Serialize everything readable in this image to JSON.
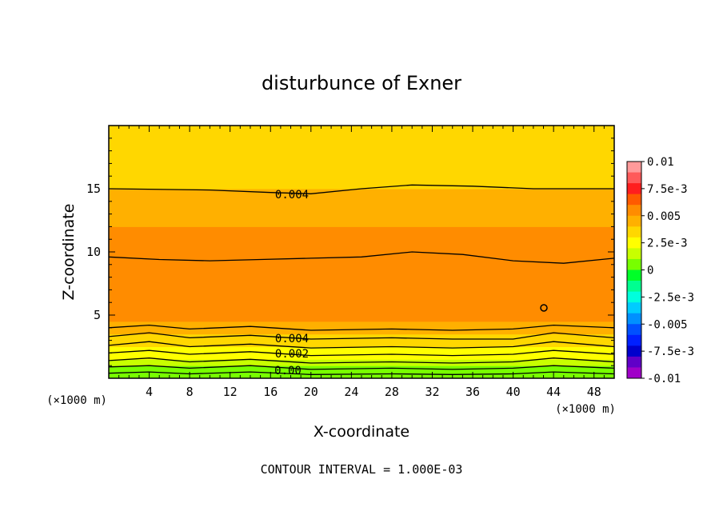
{
  "chart_data": {
    "type": "heatmap",
    "title": "disturbunce of Exner",
    "xlabel": "X-coordinate",
    "ylabel": "Z-coordinate",
    "x_unit_left": "(×1000 m)",
    "x_unit_right": "(×1000 m)",
    "xlim": [
      0,
      50
    ],
    "ylim": [
      0,
      20
    ],
    "x_ticks": [
      4,
      8,
      12,
      16,
      20,
      24,
      28,
      32,
      36,
      40,
      44,
      48
    ],
    "y_ticks": [
      5,
      10,
      15
    ],
    "footer": "CONTOUR INTERVAL = 1.000E-03",
    "colorbar": {
      "labels": [
        "0.01",
        "7.5e-3",
        "0.005",
        "2.5e-3",
        "0",
        "-2.5e-3",
        "-0.005",
        "-7.5e-3",
        "-0.01"
      ],
      "colors": [
        "#ff9a9a",
        "#ff5a5a",
        "#ff1e1e",
        "#ff5a00",
        "#ff8c00",
        "#ffb000",
        "#ffd700",
        "#ffff00",
        "#c8ff00",
        "#78ff00",
        "#00ff28",
        "#00ff90",
        "#00ffdd",
        "#00ccff",
        "#0090ff",
        "#0050ff",
        "#0020ff",
        "#0000cc",
        "#6000c8",
        "#a000c8"
      ]
    },
    "contour_labels": [
      "0.004",
      "0.004",
      "0.002",
      "0.00"
    ],
    "rows": [
      {
        "z": [
          0.0,
          0.5
        ],
        "value": 0.0005
      },
      {
        "z": [
          0.5,
          1.0
        ],
        "value": 0.001
      },
      {
        "z": [
          1.0,
          1.5
        ],
        "value": 0.0015
      },
      {
        "z": [
          1.5,
          2.0
        ],
        "value": 0.002
      },
      {
        "z": [
          2.0,
          2.5
        ],
        "value": 0.0025
      },
      {
        "z": [
          2.5,
          3.0
        ],
        "value": 0.003
      },
      {
        "z": [
          3.0,
          3.5
        ],
        "value": 0.0035
      },
      {
        "z": [
          3.5,
          4.0
        ],
        "value": 0.004
      },
      {
        "z": [
          4.0,
          4.5
        ],
        "value": 0.0048
      },
      {
        "z": [
          4.5,
          7.0
        ],
        "value": 0.0058
      },
      {
        "z": [
          7.0,
          9.5
        ],
        "value": 0.0055
      },
      {
        "z": [
          9.5,
          12.0
        ],
        "value": 0.005
      },
      {
        "z": [
          12.0,
          15.0
        ],
        "value": 0.0045
      },
      {
        "z": [
          15.0,
          18.0
        ],
        "value": 0.0038
      },
      {
        "z": [
          18.0,
          20.0
        ],
        "value": 0.003
      }
    ],
    "contours": [
      {
        "level": 0.004,
        "z": [
          [
            0,
            15.0
          ],
          [
            10,
            14.9
          ],
          [
            16,
            14.7
          ],
          [
            20,
            14.6
          ],
          [
            25,
            15.0
          ],
          [
            30,
            15.3
          ],
          [
            36,
            15.2
          ],
          [
            42,
            15.0
          ],
          [
            50,
            15.0
          ]
        ]
      },
      {
        "level": 0.005,
        "z": [
          [
            0,
            9.6
          ],
          [
            5,
            9.4
          ],
          [
            10,
            9.3
          ],
          [
            15,
            9.4
          ],
          [
            20,
            9.5
          ],
          [
            25,
            9.6
          ],
          [
            30,
            10.0
          ],
          [
            35,
            9.8
          ],
          [
            40,
            9.3
          ],
          [
            45,
            9.1
          ],
          [
            50,
            9.5
          ]
        ]
      },
      {
        "level": 0.004,
        "z": [
          [
            0,
            4.0
          ],
          [
            4,
            4.2
          ],
          [
            8,
            3.9
          ],
          [
            14,
            4.1
          ],
          [
            20,
            3.8
          ],
          [
            28,
            3.9
          ],
          [
            34,
            3.8
          ],
          [
            40,
            3.9
          ],
          [
            44,
            4.2
          ],
          [
            50,
            4.0
          ]
        ]
      },
      {
        "level": 0.0035,
        "z": [
          [
            0,
            3.3
          ],
          [
            4,
            3.6
          ],
          [
            8,
            3.2
          ],
          [
            14,
            3.4
          ],
          [
            20,
            3.1
          ],
          [
            28,
            3.2
          ],
          [
            34,
            3.1
          ],
          [
            40,
            3.1
          ],
          [
            44,
            3.6
          ],
          [
            50,
            3.2
          ]
        ]
      },
      {
        "level": 0.003,
        "z": [
          [
            0,
            2.6
          ],
          [
            4,
            2.9
          ],
          [
            8,
            2.5
          ],
          [
            14,
            2.7
          ],
          [
            20,
            2.4
          ],
          [
            28,
            2.5
          ],
          [
            34,
            2.4
          ],
          [
            40,
            2.5
          ],
          [
            44,
            2.9
          ],
          [
            50,
            2.5
          ]
        ]
      },
      {
        "level": 0.0025,
        "z": [
          [
            0,
            2.0
          ],
          [
            4,
            2.2
          ],
          [
            8,
            1.9
          ],
          [
            14,
            2.1
          ],
          [
            20,
            1.8
          ],
          [
            28,
            1.9
          ],
          [
            34,
            1.8
          ],
          [
            40,
            1.9
          ],
          [
            44,
            2.2
          ],
          [
            50,
            1.9
          ]
        ]
      },
      {
        "level": 0.002,
        "z": [
          [
            0,
            1.4
          ],
          [
            4,
            1.6
          ],
          [
            8,
            1.3
          ],
          [
            14,
            1.5
          ],
          [
            20,
            1.2
          ],
          [
            28,
            1.3
          ],
          [
            34,
            1.2
          ],
          [
            40,
            1.3
          ],
          [
            44,
            1.6
          ],
          [
            50,
            1.3
          ]
        ]
      },
      {
        "level": 0.0015,
        "z": [
          [
            0,
            0.9
          ],
          [
            4,
            1.0
          ],
          [
            8,
            0.8
          ],
          [
            14,
            1.0
          ],
          [
            20,
            0.7
          ],
          [
            28,
            0.8
          ],
          [
            34,
            0.7
          ],
          [
            40,
            0.8
          ],
          [
            44,
            1.0
          ],
          [
            50,
            0.8
          ]
        ]
      },
      {
        "level": 0.001,
        "z": [
          [
            0,
            0.4
          ],
          [
            4,
            0.5
          ],
          [
            8,
            0.35
          ],
          [
            14,
            0.5
          ],
          [
            20,
            0.3
          ],
          [
            28,
            0.35
          ],
          [
            34,
            0.3
          ],
          [
            40,
            0.35
          ],
          [
            44,
            0.5
          ],
          [
            50,
            0.35
          ]
        ]
      }
    ]
  }
}
